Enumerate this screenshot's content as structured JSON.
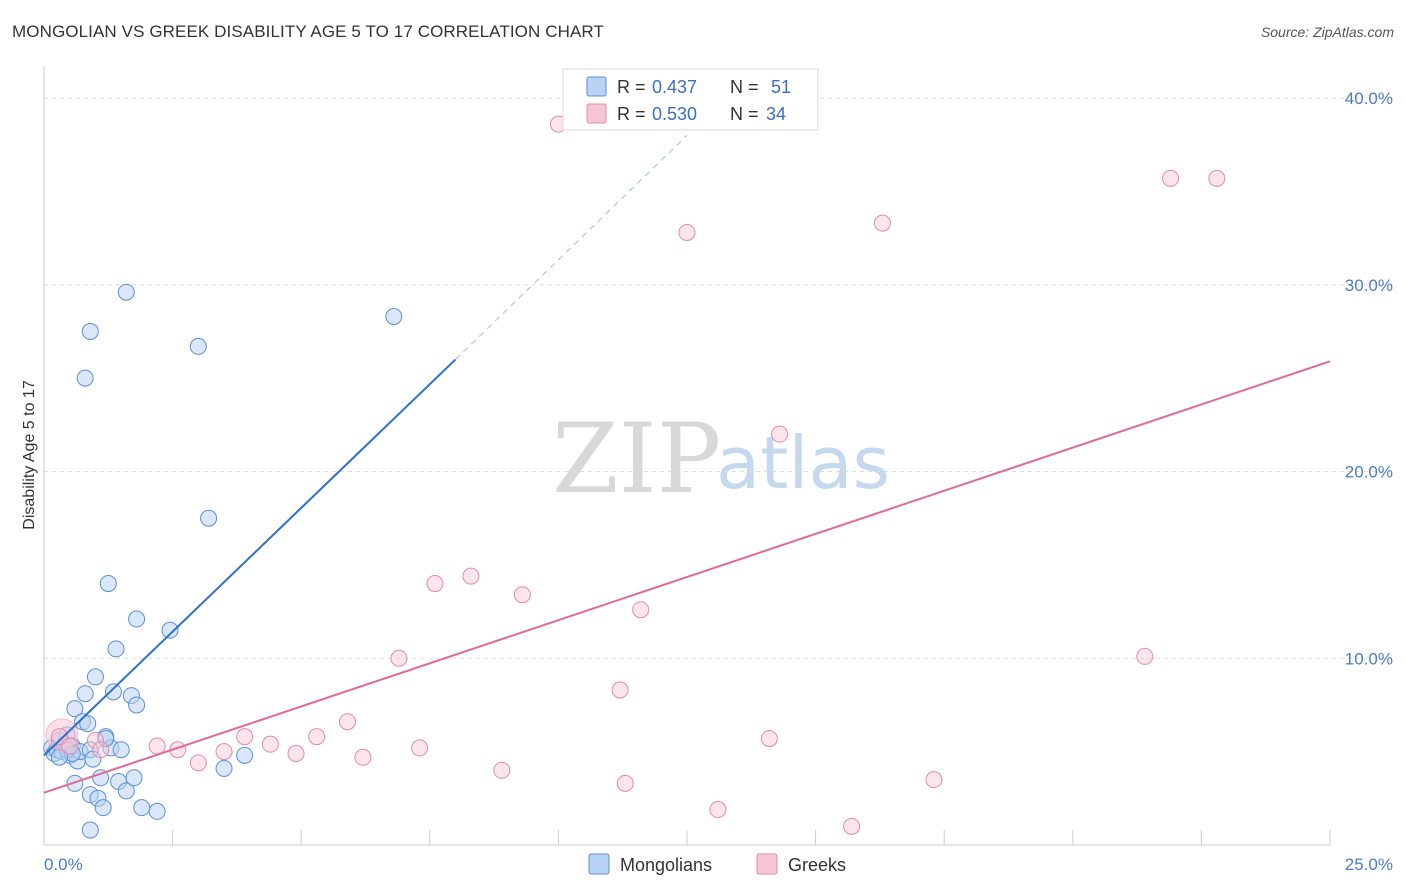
{
  "header": {
    "title": "MONGOLIAN VS GREEK DISABILITY AGE 5 TO 17 CORRELATION CHART",
    "source": "Source: ZipAtlas.com"
  },
  "watermark": {
    "zip": "ZIP",
    "atlas": "atlas"
  },
  "legend": {
    "mongolians": {
      "r_label": "R =",
      "r_value": "0.437",
      "n_label": "N =",
      "n_value": "51"
    },
    "greeks": {
      "r_label": "R =",
      "r_value": "0.530",
      "n_label": "N =",
      "n_value": "34"
    }
  },
  "colors": {
    "mongolians_fill": "#b9d3f4",
    "mongolians_stroke": "#5b8fd6",
    "mongolians_line": "#2e6fd0",
    "greeks_fill": "#f7c6d6",
    "greeks_stroke": "#e48aa8",
    "greeks_line": "#e06a96",
    "grid": "#dddddd",
    "axis_text": "#4a7cc7"
  },
  "chart_data": {
    "type": "scatter",
    "title": "MONGOLIAN VS GREEK DISABILITY AGE 5 TO 17 CORRELATION CHART",
    "xlabel": "",
    "ylabel": "Disability Age 5 to 17",
    "xlim": [
      0,
      25
    ],
    "ylim": [
      0,
      41.5
    ],
    "x_tick_labels": [
      "0.0%",
      "25.0%"
    ],
    "y_ticks": [
      10,
      20,
      30,
      40
    ],
    "y_tick_labels": [
      "10.0%",
      "20.0%",
      "30.0%",
      "40.0%"
    ],
    "bottom_legend": [
      "Mongolians",
      "Greeks"
    ],
    "series": [
      {
        "name": "Mongolians",
        "trend": {
          "x": [
            0,
            8
          ],
          "y": [
            4.8,
            26.0
          ]
        },
        "trend_dashed": {
          "x": [
            8,
            12.5
          ],
          "y": [
            26.0,
            38.0
          ]
        },
        "points": [
          [
            0.15,
            5.2
          ],
          [
            0.2,
            4.9
          ],
          [
            0.25,
            5.1
          ],
          [
            0.3,
            5.6
          ],
          [
            0.35,
            5.0
          ],
          [
            0.4,
            5.4
          ],
          [
            0.45,
            5.9
          ],
          [
            0.5,
            4.8
          ],
          [
            0.55,
            5.3
          ],
          [
            0.6,
            7.3
          ],
          [
            0.65,
            4.5
          ],
          [
            0.7,
            5.0
          ],
          [
            0.75,
            6.6
          ],
          [
            0.8,
            8.1
          ],
          [
            0.85,
            6.5
          ],
          [
            0.9,
            5.1
          ],
          [
            0.9,
            2.7
          ],
          [
            0.9,
            0.8
          ],
          [
            0.95,
            4.6
          ],
          [
            1.0,
            9.0
          ],
          [
            1.05,
            2.5
          ],
          [
            1.1,
            3.6
          ],
          [
            1.15,
            2.0
          ],
          [
            1.2,
            5.8
          ],
          [
            1.25,
            14.0
          ],
          [
            1.3,
            5.2
          ],
          [
            1.35,
            8.2
          ],
          [
            1.4,
            10.5
          ],
          [
            1.45,
            3.4
          ],
          [
            1.5,
            5.1
          ],
          [
            1.6,
            2.9
          ],
          [
            1.6,
            29.6
          ],
          [
            1.7,
            8.0
          ],
          [
            1.75,
            3.6
          ],
          [
            1.8,
            7.5
          ],
          [
            1.8,
            12.1
          ],
          [
            1.9,
            2.0
          ],
          [
            2.2,
            1.8
          ],
          [
            2.45,
            11.5
          ],
          [
            3.0,
            26.7
          ],
          [
            3.2,
            17.5
          ],
          [
            3.5,
            4.1
          ],
          [
            3.9,
            4.8
          ],
          [
            0.8,
            25.0
          ],
          [
            0.9,
            27.5
          ],
          [
            6.8,
            28.3
          ],
          [
            0.6,
            3.3
          ],
          [
            1.2,
            5.7
          ],
          [
            0.45,
            5.1
          ],
          [
            0.55,
            4.9
          ],
          [
            0.3,
            4.7
          ]
        ]
      },
      {
        "name": "Greeks",
        "trend": {
          "x": [
            0,
            25
          ],
          "y": [
            2.8,
            25.9
          ]
        },
        "points": [
          [
            0.3,
            5.8
          ],
          [
            0.5,
            5.3
          ],
          [
            1.0,
            5.6
          ],
          [
            1.1,
            5.1
          ],
          [
            2.2,
            5.3
          ],
          [
            2.6,
            5.1
          ],
          [
            3.0,
            4.4
          ],
          [
            3.5,
            5.0
          ],
          [
            3.9,
            5.8
          ],
          [
            4.4,
            5.4
          ],
          [
            4.9,
            4.9
          ],
          [
            5.3,
            5.8
          ],
          [
            5.9,
            6.6
          ],
          [
            6.2,
            4.7
          ],
          [
            6.9,
            10.0
          ],
          [
            7.3,
            5.2
          ],
          [
            7.6,
            14.0
          ],
          [
            8.3,
            14.4
          ],
          [
            8.9,
            4.0
          ],
          [
            9.3,
            13.4
          ],
          [
            10.0,
            38.6
          ],
          [
            11.2,
            8.3
          ],
          [
            11.3,
            3.3
          ],
          [
            11.6,
            12.6
          ],
          [
            12.5,
            32.8
          ],
          [
            13.1,
            1.9
          ],
          [
            14.1,
            5.7
          ],
          [
            14.3,
            22.0
          ],
          [
            15.7,
            1.0
          ],
          [
            16.3,
            33.3
          ],
          [
            17.3,
            3.5
          ],
          [
            21.4,
            10.1
          ],
          [
            21.9,
            35.7
          ],
          [
            22.8,
            35.7
          ]
        ]
      }
    ]
  }
}
